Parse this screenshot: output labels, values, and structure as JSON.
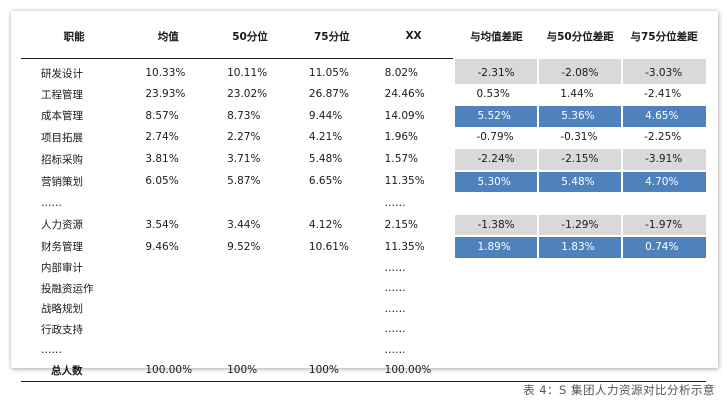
{
  "headers": {
    "name": "职能",
    "mean": "均值",
    "p50": "50分位",
    "p75": "75分位",
    "xx": "XX",
    "diff_mean": "与均值差距",
    "diff_p50": "与50分位差距",
    "diff_p75": "与75分位差距"
  },
  "rows": [
    {
      "name": "研发设计",
      "mean": "10.33%",
      "p50": "10.11%",
      "p75": "11.05%",
      "xx": "8.02%",
      "diff_mean": "-2.31%",
      "diff_p50": "-2.08%",
      "diff_p75": "-3.03%",
      "highlight": "gray"
    },
    {
      "name": "工程管理",
      "mean": "23.93%",
      "p50": "23.02%",
      "p75": "26.87%",
      "xx": "24.46%",
      "diff_mean": "0.53%",
      "diff_p50": "1.44%",
      "diff_p75": "-2.41%",
      "highlight": "none"
    },
    {
      "name": "成本管理",
      "mean": "8.57%",
      "p50": "8.73%",
      "p75": "9.44%",
      "xx": "14.09%",
      "diff_mean": "5.52%",
      "diff_p50": "5.36%",
      "diff_p75": "4.65%",
      "highlight": "blue"
    },
    {
      "name": "项目拓展",
      "mean": "2.74%",
      "p50": "2.27%",
      "p75": "4.21%",
      "xx": "1.96%",
      "diff_mean": "-0.79%",
      "diff_p50": "-0.31%",
      "diff_p75": "-2.25%",
      "highlight": "none"
    },
    {
      "name": "招标采购",
      "mean": "3.81%",
      "p50": "3.71%",
      "p75": "5.48%",
      "xx": "1.57%",
      "diff_mean": "-2.24%",
      "diff_p50": "-2.15%",
      "diff_p75": "-3.91%",
      "highlight": "gray"
    },
    {
      "name": "营销策划",
      "mean": "6.05%",
      "p50": "5.87%",
      "p75": "6.65%",
      "xx": "11.35%",
      "diff_mean": "5.30%",
      "diff_p50": "5.48%",
      "diff_p75": "4.70%",
      "highlight": "blue"
    },
    {
      "name": "……",
      "mean": "",
      "p50": "",
      "p75": "",
      "xx": "……",
      "diff_mean": "",
      "diff_p50": "",
      "diff_p75": "",
      "highlight": "none"
    },
    {
      "name": "人力资源",
      "mean": "3.54%",
      "p50": "3.44%",
      "p75": "4.12%",
      "xx": "2.15%",
      "diff_mean": "-1.38%",
      "diff_p50": "-1.29%",
      "diff_p75": "-1.97%",
      "highlight": "gray"
    },
    {
      "name": "财务管理",
      "mean": "9.46%",
      "p50": "9.52%",
      "p75": "10.61%",
      "xx": "11.35%",
      "diff_mean": "1.89%",
      "diff_p50": "1.83%",
      "diff_p75": "0.74%",
      "highlight": "blue"
    },
    {
      "name": "内部审计",
      "mean": "",
      "p50": "",
      "p75": "",
      "xx": "……",
      "diff_mean": "",
      "diff_p50": "",
      "diff_p75": "",
      "highlight": "none"
    },
    {
      "name": "投融资运作",
      "mean": "",
      "p50": "",
      "p75": "",
      "xx": "……",
      "diff_mean": "",
      "diff_p50": "",
      "diff_p75": "",
      "highlight": "none"
    },
    {
      "name": "战略规划",
      "mean": "",
      "p50": "",
      "p75": "",
      "xx": "……",
      "diff_mean": "",
      "diff_p50": "",
      "diff_p75": "",
      "highlight": "none"
    },
    {
      "name": "行政支持",
      "mean": "",
      "p50": "",
      "p75": "",
      "xx": "……",
      "diff_mean": "",
      "diff_p50": "",
      "diff_p75": "",
      "highlight": "none"
    },
    {
      "name": "……",
      "mean": "",
      "p50": "",
      "p75": "",
      "xx": "……",
      "diff_mean": "",
      "diff_p50": "",
      "diff_p75": "",
      "highlight": "none"
    }
  ],
  "total": {
    "name": "总人数",
    "mean": "100.00%",
    "p50": "100%",
    "p75": "100%",
    "xx": "100.00%"
  },
  "caption": "表 4：S 集团人力资源对比分析示意",
  "colors": {
    "highlight_gray": "#d9d9d9",
    "highlight_blue": "#4f81bd"
  }
}
